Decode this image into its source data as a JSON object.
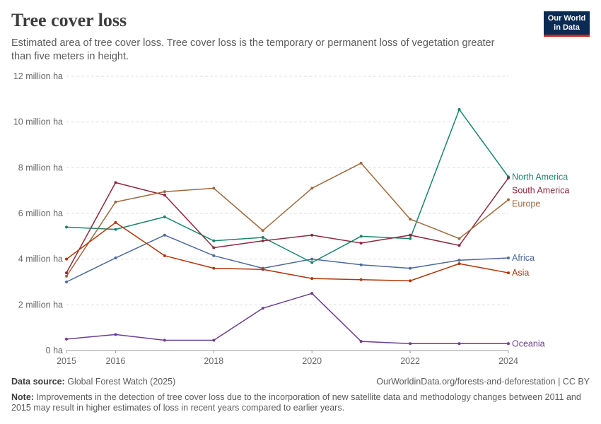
{
  "header": {
    "title": "Tree cover loss",
    "subtitle": "Estimated area of tree cover loss. Tree cover loss is the temporary or permanent loss of vegetation greater than five meters in height.",
    "logo_line1": "Our World",
    "logo_line2": "in Data"
  },
  "footer": {
    "source_label": "Data source:",
    "source_text": "Global Forest Watch (2025)",
    "url_text": "OurWorldinData.org/forests-and-deforestation | CC BY",
    "note_label": "Note:",
    "note_text": "Improvements in the detection of tree cover loss due to the incorporation of new satellite data and methodology changes between 2011 and 2015 may result in higher estimates of loss in recent years compared to earlier years."
  },
  "chart_data": {
    "type": "line",
    "title": "Tree cover loss",
    "xlabel": "",
    "ylabel": "",
    "x": [
      2015,
      2016,
      2017,
      2018,
      2019,
      2020,
      2021,
      2022,
      2023,
      2024
    ],
    "xticks": [
      2015,
      2016,
      2018,
      2020,
      2022,
      2024
    ],
    "xlim": [
      2015,
      2024
    ],
    "ylim": [
      0,
      12
    ],
    "yticks": [
      {
        "value": 0,
        "label": "0 ha"
      },
      {
        "value": 2,
        "label": "2 million ha"
      },
      {
        "value": 4,
        "label": "4 million ha"
      },
      {
        "value": 6,
        "label": "6 million ha"
      },
      {
        "value": 8,
        "label": "8 million ha"
      },
      {
        "value": 10,
        "label": "10 million ha"
      },
      {
        "value": 12,
        "label": "12 million ha"
      }
    ],
    "grid": true,
    "legend": "right-end labels",
    "series": [
      {
        "name": "North America",
        "color": "#18856c",
        "values": [
          5.4,
          5.3,
          5.85,
          4.8,
          4.95,
          3.85,
          5.0,
          4.9,
          10.55,
          7.6
        ]
      },
      {
        "name": "South America",
        "color": "#8c2a3e",
        "values": [
          3.4,
          7.35,
          6.8,
          4.5,
          4.8,
          5.05,
          4.7,
          5.05,
          4.6,
          7.55
        ]
      },
      {
        "name": "Europe",
        "color": "#a0683b",
        "values": [
          3.25,
          6.5,
          6.95,
          7.1,
          5.25,
          7.1,
          8.2,
          5.75,
          4.9,
          6.6
        ]
      },
      {
        "name": "Africa",
        "color": "#4c6a9c",
        "values": [
          3.0,
          4.05,
          5.05,
          4.15,
          3.6,
          4.0,
          3.75,
          3.6,
          3.95,
          4.05
        ]
      },
      {
        "name": "Asia",
        "color": "#b13507",
        "values": [
          4.0,
          5.6,
          4.15,
          3.6,
          3.55,
          3.15,
          3.1,
          3.05,
          3.8,
          3.4
        ]
      },
      {
        "name": "Oceania",
        "color": "#6d3e91",
        "values": [
          0.5,
          0.7,
          0.45,
          0.45,
          1.85,
          2.5,
          0.4,
          0.3,
          0.3,
          0.3
        ]
      }
    ]
  }
}
